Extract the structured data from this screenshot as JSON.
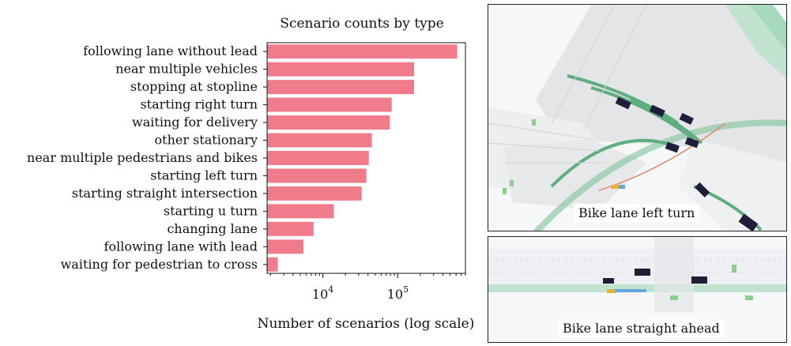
{
  "chart_data": {
    "type": "bar",
    "orientation": "horizontal",
    "title": "Scenario counts by type",
    "xlabel": "Number of scenarios (log scale)",
    "ylabel": "",
    "x_scale": "log",
    "xlim": [
      1800,
      800000
    ],
    "x_ticks": [
      {
        "value": 10000,
        "base": "10",
        "exp": "4"
      },
      {
        "value": 100000,
        "base": "10",
        "exp": "5"
      }
    ],
    "bar_color": "#f07b8a",
    "categories": [
      "following lane without lead",
      "near multiple vehicles",
      "stopping at stopline",
      "starting right turn",
      "waiting for delivery",
      "other stationary",
      "near multiple pedestrians and bikes",
      "starting left turn",
      "starting straight intersection",
      "starting u turn",
      "changing lane",
      "following lane with lead",
      "waiting for pedestrian to cross"
    ],
    "values": [
      620000,
      165000,
      165000,
      83000,
      78000,
      45000,
      41000,
      38000,
      33000,
      14000,
      7500,
      5500,
      2500
    ]
  },
  "panels": {
    "top_caption": "Bike lane left turn",
    "bottom_caption": "Bike lane straight ahead"
  }
}
